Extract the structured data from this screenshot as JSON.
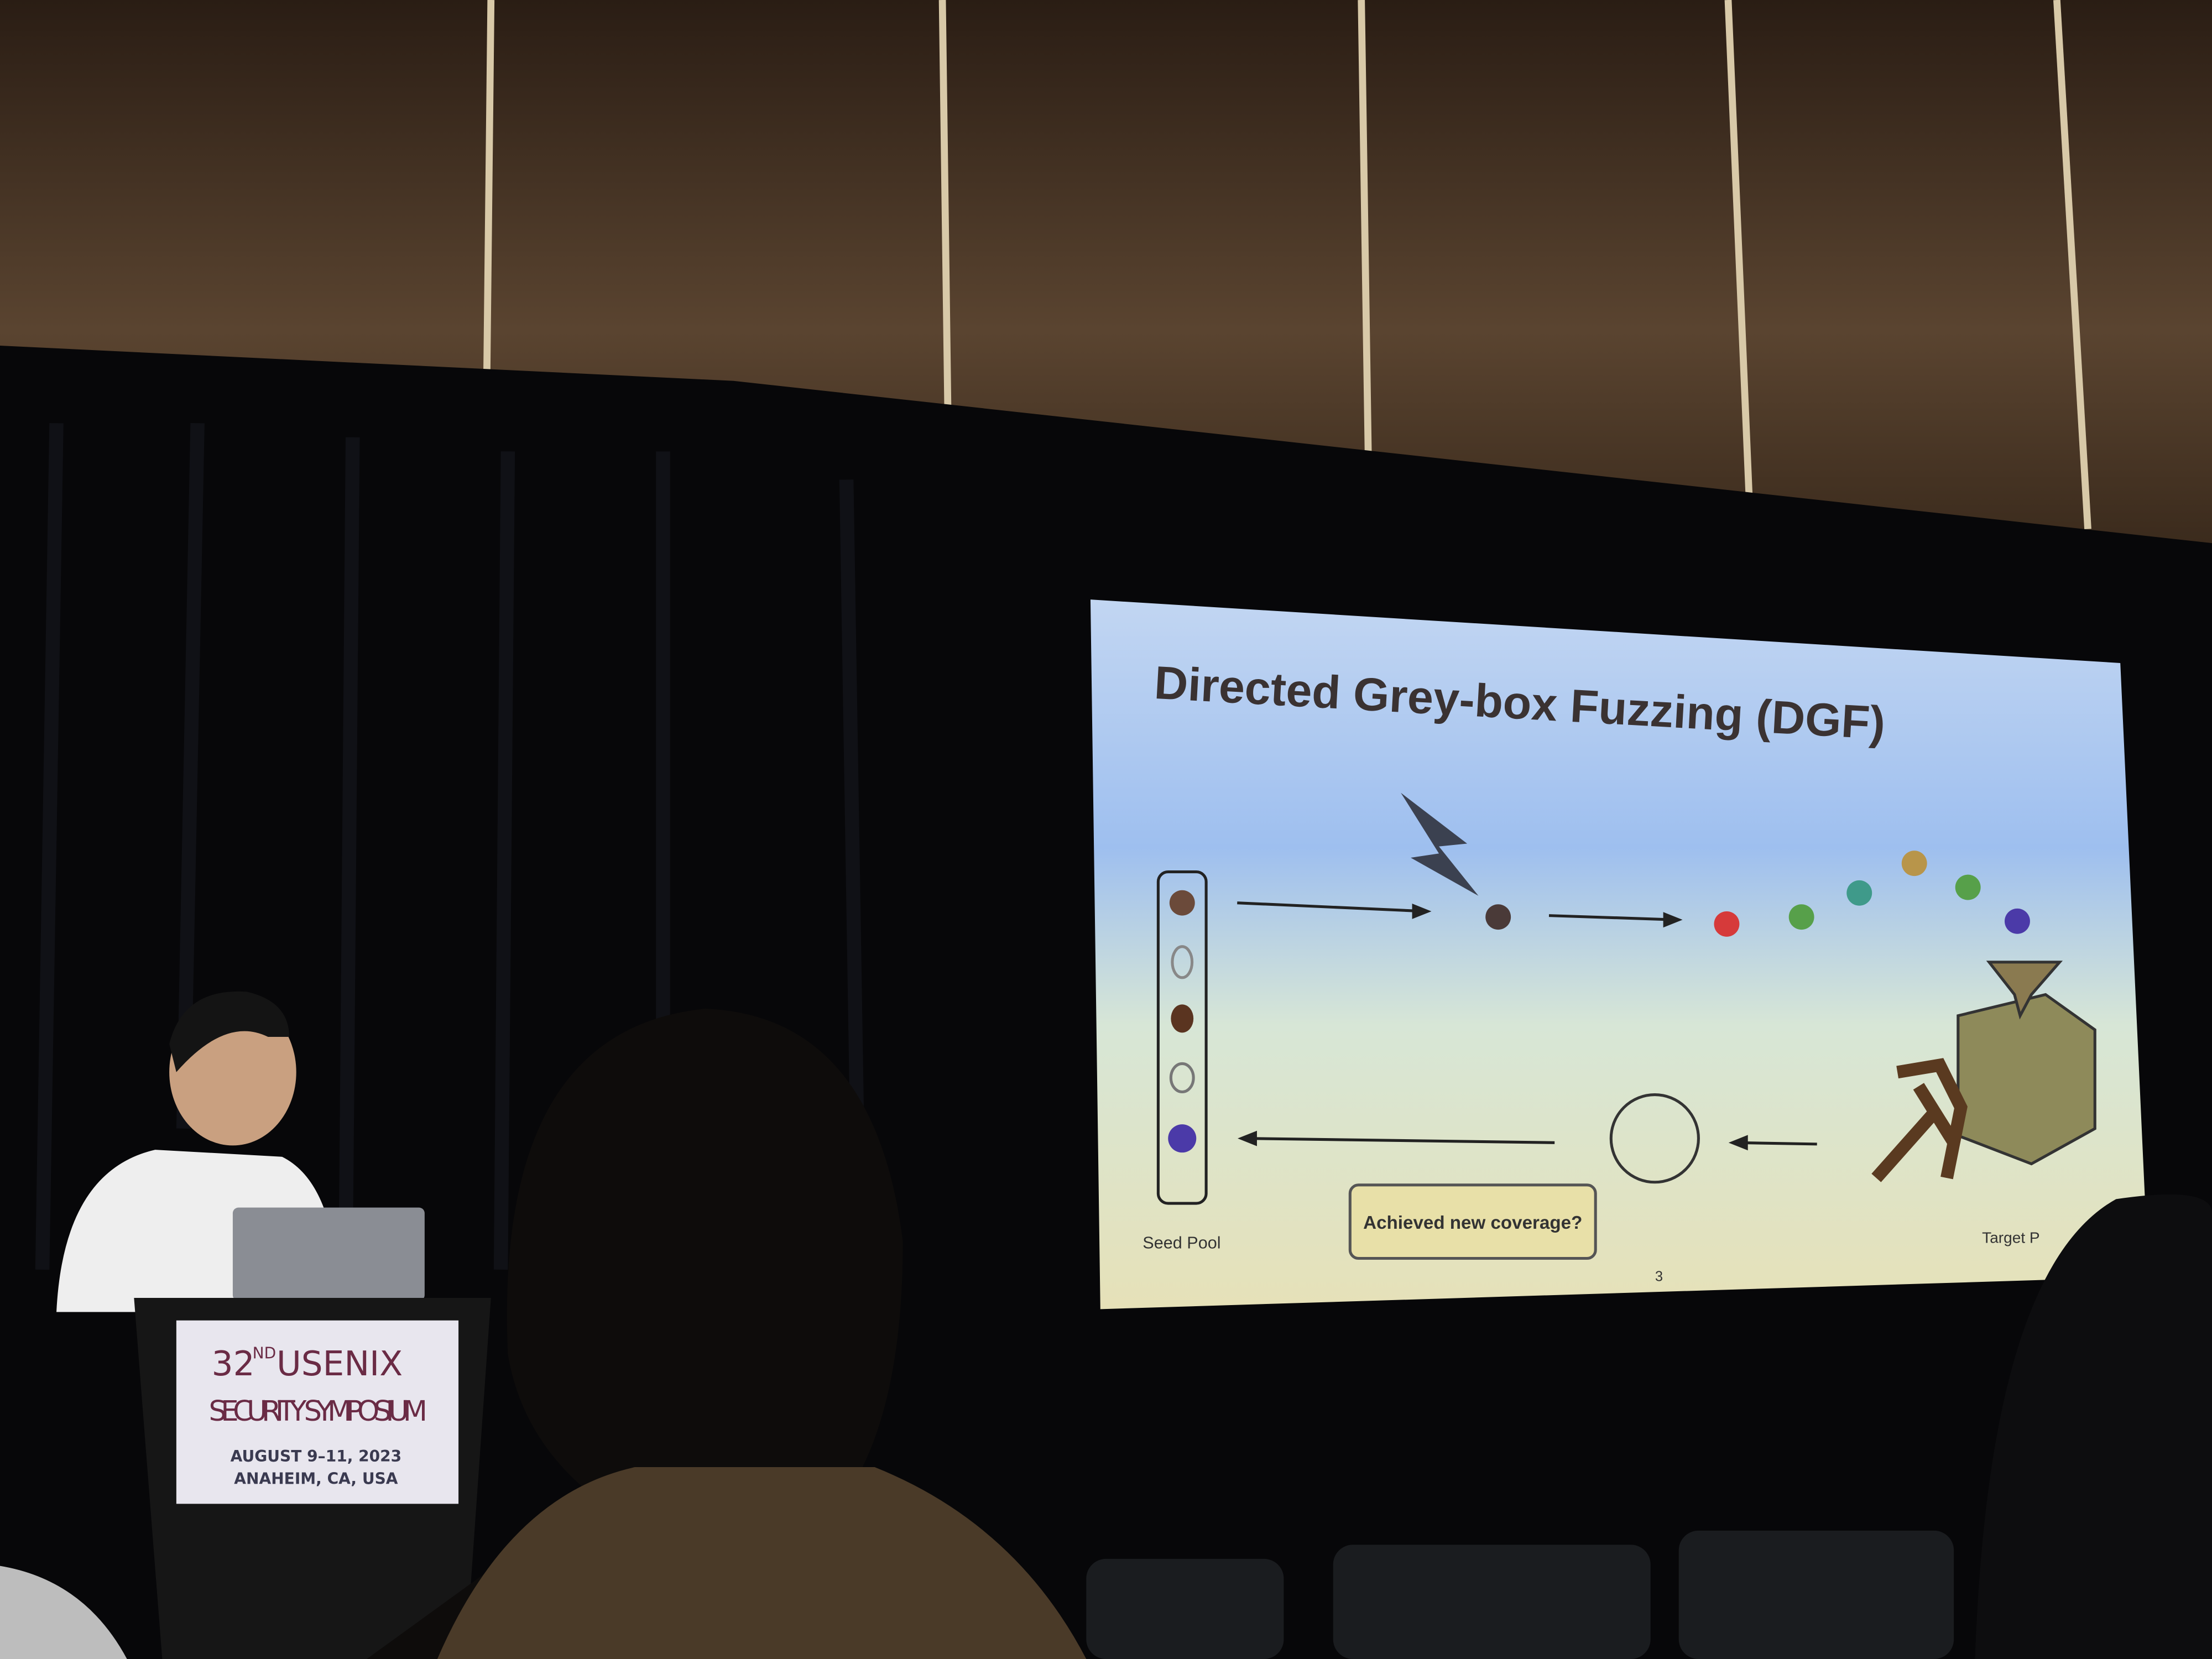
{
  "slide": {
    "title": "Directed Grey-box Fuzzing (DGF)",
    "seed_pool_label": "Seed Pool",
    "speech_bubble": "Achieved new coverage?",
    "target_label": "Target P",
    "page_number": 3
  },
  "podium": {
    "edition": "32",
    "edition_suffix": "ND",
    "name": "USENIX",
    "subtitle": "SECURITY SYMPOSIUM",
    "dates": "AUGUST 9–11, 2023",
    "location": "ANAHEIM, CA, USA"
  }
}
